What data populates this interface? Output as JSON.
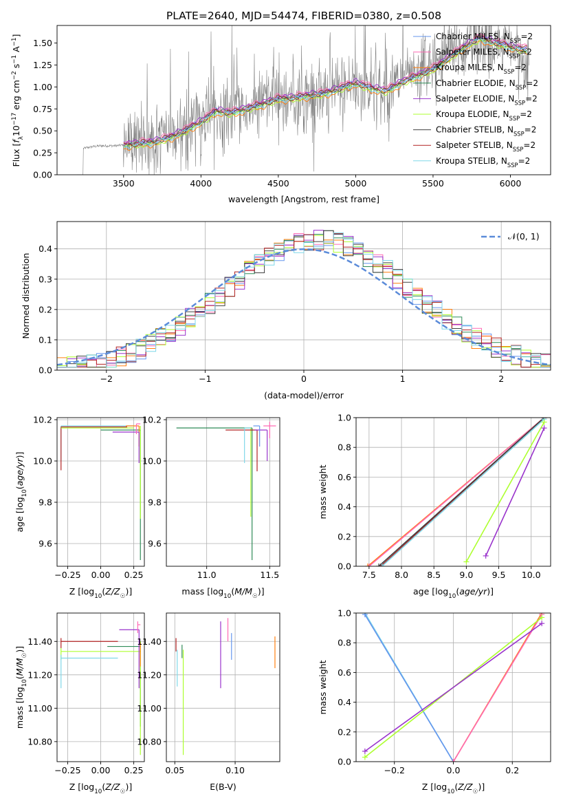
{
  "figure": {
    "title": "PLATE=2640, MJD=54474, FIBERID=0380, z=0.508"
  },
  "chart_data": [
    {
      "id": "spectrum",
      "type": "line",
      "title": "PLATE=2640, MJD=54474, FIBERID=0380, z=0.508",
      "xlabel": "wavelength [Angstrom, rest frame]",
      "ylabel": "Flux [f_λ 10^-17 erg cm^-2 s^-1 A^-1]",
      "xlim": [
        3070,
        6260
      ],
      "ylim": [
        0,
        1.7
      ],
      "xticks": [
        3500,
        4000,
        4500,
        5000,
        5500,
        6000
      ],
      "yticks": [
        0.0,
        0.25,
        0.5,
        0.75,
        1.0,
        1.25,
        1.5
      ],
      "grid": false,
      "legend_position": "right",
      "data_curve": {
        "color": "#808080",
        "x": [
          3200,
          3230,
          3240,
          3300,
          3350,
          3400,
          3450,
          3500,
          3550,
          3600,
          3650,
          3700,
          3750,
          3800,
          3850,
          3900,
          3950,
          4000,
          4050,
          4100,
          4200,
          4300,
          4400,
          4500,
          4600,
          4700,
          4800,
          4900,
          5000,
          5100,
          5200,
          5300,
          5400,
          5500,
          5600,
          5700,
          5760,
          5800,
          5900,
          6000,
          6100
        ],
        "y": [
          0.0,
          0.0,
          0.3,
          0.32,
          0.33,
          0.33,
          0.33,
          0.34,
          0.36,
          0.36,
          0.38,
          0.35,
          0.4,
          0.45,
          0.5,
          0.55,
          0.58,
          0.65,
          0.72,
          0.68,
          0.7,
          0.75,
          0.82,
          0.86,
          0.88,
          0.9,
          0.92,
          1.0,
          1.02,
          1.0,
          0.98,
          1.05,
          1.15,
          1.2,
          1.35,
          1.45,
          1.6,
          1.55,
          1.5,
          1.4,
          1.3
        ],
        "noise_start": 3500,
        "noise_amplitude": 0.45
      },
      "models": {
        "x": [
          3500,
          3600,
          3700,
          3800,
          3900,
          4000,
          4100,
          4200,
          4300,
          4400,
          4500,
          4600,
          4700,
          4800,
          4900,
          5000,
          5100,
          5200,
          5300,
          5400,
          5500,
          5600,
          5700,
          5800,
          5900,
          6000,
          6100
        ],
        "base": [
          0.33,
          0.35,
          0.37,
          0.42,
          0.5,
          0.6,
          0.72,
          0.7,
          0.75,
          0.8,
          0.86,
          0.87,
          0.9,
          0.92,
          0.98,
          1.04,
          0.98,
          0.95,
          1.05,
          1.12,
          1.2,
          1.32,
          1.45,
          1.55,
          1.5,
          1.45,
          1.42
        ]
      },
      "series": [
        {
          "name": "Chabrier MILES, N_SSP=2",
          "color": "#6495ED",
          "offset": 0.02
        },
        {
          "name": "Salpeter MILES, N_SSP=2",
          "color": "#FF69B4",
          "offset": 0.04
        },
        {
          "name": "Kroupa MILES, N_SSP=2",
          "color": "#FF7F0E",
          "offset": -0.03
        },
        {
          "name": "Chabrier ELODIE, N_SSP=2",
          "color": "#2E8B57",
          "offset": 0.01
        },
        {
          "name": "Salpeter ELODIE, N_SSP=2",
          "color": "#9932CC",
          "offset": 0.03
        },
        {
          "name": "Kroupa ELODIE, N_SSP=2",
          "color": "#ADFF2F",
          "offset": -0.02
        },
        {
          "name": "Chabrier STELIB, N_SSP=2",
          "color": "#404040",
          "offset": 0.0
        },
        {
          "name": "Salpeter STELIB, N_SSP=2",
          "color": "#B22222",
          "offset": 0.02
        },
        {
          "name": "Kroupa STELIB, N_SSP=2",
          "color": "#7FD8E8",
          "offset": -0.01
        }
      ]
    },
    {
      "id": "residuals",
      "type": "step-histogram",
      "xlabel": "(data-model)/error",
      "ylabel": "Normed distribution",
      "xlim": [
        -2.5,
        2.5
      ],
      "ylim": [
        0,
        0.49
      ],
      "xticks": [
        -2,
        -1,
        0,
        1,
        2
      ],
      "yticks": [
        0.0,
        0.1,
        0.2,
        0.3,
        0.4
      ],
      "grid": true,
      "legend_position": "top-right",
      "reference_curve": {
        "name": "𝒩(0, 1)",
        "color": "#5B8BD9",
        "dashed": true
      },
      "bins": {
        "start": -2.5,
        "width": 0.1,
        "count": 50
      }
    },
    {
      "id": "age_vs_Z",
      "type": "errorbar",
      "xlabel": "Z [log10(Z/Z☉)]",
      "ylabel": "age  [log10(age/yr)]",
      "xlim": [
        -0.33,
        0.33
      ],
      "ylim": [
        9.49,
        10.21
      ],
      "xticks": [
        -0.25,
        0.0,
        0.25
      ],
      "yticks": [
        9.6,
        9.8,
        10.0,
        10.2
      ],
      "grid": true,
      "bars": [
        {
          "x": -0.3,
          "y": 10.17,
          "xerr": [
            0.0,
            0.55
          ],
          "yerr": [
            0.17,
            0.0
          ],
          "color": "#7FD8E8"
        },
        {
          "x": -0.3,
          "y": 10.165,
          "xerr": [
            0.0,
            0.5
          ],
          "yerr": [
            0.21,
            0.0
          ],
          "color": "#B22222"
        },
        {
          "x": -0.3,
          "y": 10.16,
          "xerr": [
            0.0,
            0.55
          ],
          "yerr": [
            0.0,
            0.0
          ],
          "color": "#ADFF2F"
        },
        {
          "x": 0.3,
          "y": 10.15,
          "xerr": [
            0.3,
            0.0
          ],
          "yerr": [
            0.63,
            0.0
          ],
          "color": "#2E8B57"
        },
        {
          "x": 0.29,
          "y": 10.17,
          "xerr": [
            0.1,
            0.0
          ],
          "yerr": [
            0.1,
            0.0
          ],
          "color": "#FF7F0E"
        },
        {
          "x": 0.29,
          "y": 10.14,
          "xerr": [
            0.2,
            0.0
          ],
          "yerr": [
            0.15,
            0.0
          ],
          "color": "#9932CC"
        },
        {
          "x": 0.27,
          "y": 10.18,
          "xerr": [
            0.0,
            0.03
          ],
          "yerr": [
            0.05,
            0.0
          ],
          "color": "#FF69B4"
        },
        {
          "x": 0.3,
          "y": 10.17,
          "xerr": [
            0.0,
            0.0
          ],
          "yerr": [
            0.45,
            0.0
          ],
          "color": "#ADFF2F"
        }
      ]
    },
    {
      "id": "age_vs_mass",
      "type": "errorbar",
      "xlabel": "mass [log10(M/M☉)]",
      "ylabel": "",
      "xlim": [
        10.68,
        11.58
      ],
      "ylim": [
        9.49,
        10.21
      ],
      "xticks": [
        11.0,
        11.5
      ],
      "yticks": [
        9.6,
        9.8,
        10.0,
        10.2
      ],
      "grid": true,
      "bars": [
        {
          "x": 11.36,
          "y": 10.16,
          "xerr": [
            0.6,
            0.0
          ],
          "yerr": [
            0.64,
            0.0
          ],
          "color": "#2E8B57"
        },
        {
          "x": 11.35,
          "y": 10.16,
          "xerr": [
            0.0,
            0.0
          ],
          "yerr": [
            0.43,
            0.0
          ],
          "color": "#ADFF2F"
        },
        {
          "x": 11.4,
          "y": 10.15,
          "xerr": [
            0.25,
            0.0
          ],
          "yerr": [
            0.2,
            0.0
          ],
          "color": "#B22222"
        },
        {
          "x": 11.3,
          "y": 10.16,
          "xerr": [
            0.0,
            0.05
          ],
          "yerr": [
            0.17,
            0.0
          ],
          "color": "#7FD8E8"
        },
        {
          "x": 11.48,
          "y": 10.15,
          "xerr": [
            0.1,
            0.0
          ],
          "yerr": [
            0.15,
            0.0
          ],
          "color": "#9932CC"
        },
        {
          "x": 11.5,
          "y": 10.17,
          "xerr": [
            0.05,
            0.05
          ],
          "yerr": [
            0.06,
            0.02
          ],
          "color": "#FF69B4"
        },
        {
          "x": 11.42,
          "y": 10.17,
          "xerr": [
            0.05,
            0.0
          ],
          "yerr": [
            0.1,
            0.0
          ],
          "color": "#6495ED"
        }
      ]
    },
    {
      "id": "mass_weight_vs_age",
      "type": "line",
      "xlabel": "age  [log10(age/yr)]",
      "ylabel": "mass weight",
      "xlim": [
        7.3,
        10.3
      ],
      "ylim": [
        0,
        1.0
      ],
      "xticks": [
        7.5,
        8.0,
        8.5,
        9.0,
        9.5,
        10.0
      ],
      "yticks": [
        0.0,
        0.2,
        0.4,
        0.6,
        0.8,
        1.0
      ],
      "grid": true,
      "series": [
        {
          "x": [
            7.48,
            10.2
          ],
          "y": [
            0.0,
            1.0
          ],
          "color": "#FF7F0E"
        },
        {
          "x": [
            7.5,
            10.2
          ],
          "y": [
            0.0,
            1.0
          ],
          "color": "#FF69B4"
        },
        {
          "x": [
            7.68,
            10.2
          ],
          "y": [
            0.0,
            1.0
          ],
          "color": "#B22222"
        },
        {
          "x": [
            7.65,
            10.2
          ],
          "y": [
            0.0,
            1.0
          ],
          "color": "#404040"
        },
        {
          "x": [
            7.7,
            10.2
          ],
          "y": [
            0.0,
            0.99
          ],
          "color": "#7FD8E8"
        },
        {
          "x": [
            9.0,
            10.2
          ],
          "y": [
            0.03,
            0.97
          ],
          "color": "#ADFF2F"
        },
        {
          "x": [
            9.3,
            10.2
          ],
          "y": [
            0.07,
            0.93
          ],
          "color": "#9932CC"
        }
      ]
    },
    {
      "id": "mass_vs_Z",
      "type": "errorbar",
      "xlabel": "Z [log10(Z/Z☉)]",
      "ylabel": "mass [log10(M/M☉)]",
      "xlim": [
        -0.33,
        0.33
      ],
      "ylim": [
        10.68,
        11.57
      ],
      "xticks": [
        -0.25,
        0.0,
        0.25
      ],
      "yticks": [
        10.8,
        11.0,
        11.2,
        11.4
      ],
      "grid": true,
      "bars": [
        {
          "x": -0.3,
          "y": 11.4,
          "xerr": [
            0.0,
            0.43
          ],
          "yerr": [
            0.04,
            0.02
          ],
          "color": "#B22222"
        },
        {
          "x": -0.3,
          "y": 11.34,
          "xerr": [
            0.0,
            0.6
          ],
          "yerr": [
            0.05,
            0.02
          ],
          "color": "#ADFF2F"
        },
        {
          "x": -0.3,
          "y": 11.3,
          "xerr": [
            0.0,
            0.43
          ],
          "yerr": [
            0.18,
            0.02
          ],
          "color": "#7FD8E8"
        },
        {
          "x": 0.3,
          "y": 11.37,
          "xerr": [
            0.25,
            0.0
          ],
          "yerr": [
            0.48,
            0.0
          ],
          "color": "#2E8B57"
        },
        {
          "x": 0.29,
          "y": 11.47,
          "xerr": [
            0.15,
            0.0
          ],
          "yerr": [
            0.35,
            0.0
          ],
          "color": "#9932CC"
        },
        {
          "x": 0.28,
          "y": 11.5,
          "xerr": [
            0.0,
            0.02
          ],
          "yerr": [
            0.05,
            0.02
          ],
          "color": "#FF69B4"
        },
        {
          "x": 0.3,
          "y": 11.4,
          "xerr": [
            0.0,
            0.0
          ],
          "yerr": [
            0.68,
            0.0
          ],
          "color": "#ADFF2F"
        },
        {
          "x": 0.3,
          "y": 11.33,
          "xerr": [
            0.0,
            0.0
          ],
          "yerr": [
            0.08,
            0.06
          ],
          "color": "#FF7F0E"
        }
      ]
    },
    {
      "id": "mass_vs_EBV",
      "type": "errorbar",
      "xlabel": "E(B-V)",
      "ylabel": "",
      "xlim": [
        0.043,
        0.137
      ],
      "ylim": [
        10.68,
        11.57
      ],
      "xticks": [
        0.05,
        0.1
      ],
      "yticks": [
        10.8,
        11.0,
        11.2,
        11.4
      ],
      "grid": true,
      "bars": [
        {
          "x": 0.051,
          "y": 11.39,
          "xerr": [
            0,
            0
          ],
          "yerr": [
            0.05,
            0.03
          ],
          "color": "#B22222"
        },
        {
          "x": 0.052,
          "y": 11.25,
          "xerr": [
            0,
            0
          ],
          "yerr": [
            0.12,
            0.1
          ],
          "color": "#7FD8E8"
        },
        {
          "x": 0.056,
          "y": 11.35,
          "xerr": [
            0,
            0
          ],
          "yerr": [
            0.05,
            0.03
          ],
          "color": "#2E8B57"
        },
        {
          "x": 0.057,
          "y": 11.05,
          "xerr": [
            0,
            0
          ],
          "yerr": [
            0.33,
            0.3
          ],
          "color": "#ADFF2F"
        },
        {
          "x": 0.088,
          "y": 11.3,
          "xerr": [
            0,
            0
          ],
          "yerr": [
            0.18,
            0.22
          ],
          "color": "#9932CC"
        },
        {
          "x": 0.094,
          "y": 11.46,
          "xerr": [
            0,
            0
          ],
          "yerr": [
            0.06,
            0.08
          ],
          "color": "#FF69B4"
        },
        {
          "x": 0.097,
          "y": 11.36,
          "xerr": [
            0,
            0
          ],
          "yerr": [
            0.07,
            0.09
          ],
          "color": "#6495ED"
        },
        {
          "x": 0.133,
          "y": 11.34,
          "xerr": [
            0,
            0
          ],
          "yerr": [
            0.1,
            0.09
          ],
          "color": "#FF7F0E"
        }
      ]
    },
    {
      "id": "mass_weight_vs_Z",
      "type": "line",
      "xlabel": "Z [log10(Z/Z☉)]",
      "ylabel": "mass weight",
      "xlim": [
        -0.33,
        0.33
      ],
      "ylim": [
        0,
        1.0
      ],
      "xticks": [
        -0.2,
        0.0,
        0.2
      ],
      "yticks": [
        0.0,
        0.2,
        0.4,
        0.6,
        0.8,
        1.0
      ],
      "grid": true,
      "series": [
        {
          "x": [
            -0.3,
            0.0
          ],
          "y": [
            1.0,
            0.0
          ],
          "color": "#7FD8E8"
        },
        {
          "x": [
            -0.3,
            0.0
          ],
          "y": [
            0.99,
            0.0
          ],
          "color": "#6495ED"
        },
        {
          "x": [
            0.0,
            0.3
          ],
          "y": [
            0.0,
            1.0
          ],
          "color": "#FF7F0E"
        },
        {
          "x": [
            0.0,
            0.3
          ],
          "y": [
            0.0,
            0.99
          ],
          "color": "#FF69B4"
        },
        {
          "x": [
            -0.3,
            0.3
          ],
          "y": [
            0.03,
            0.97
          ],
          "color": "#ADFF2F"
        },
        {
          "x": [
            -0.3,
            0.3
          ],
          "y": [
            0.07,
            0.93
          ],
          "color": "#9932CC"
        }
      ]
    }
  ]
}
